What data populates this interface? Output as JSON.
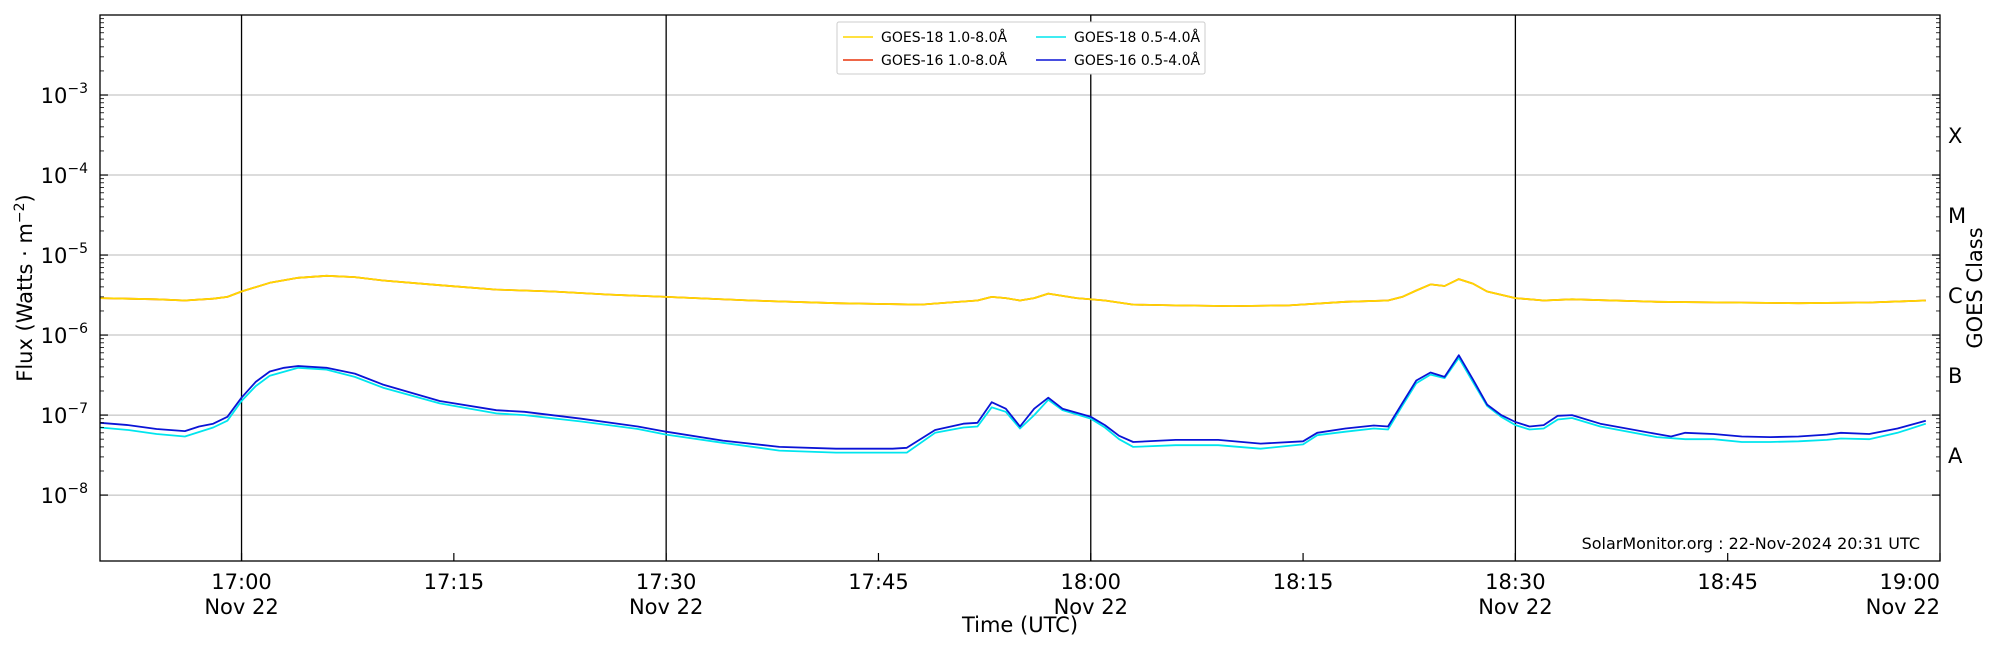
{
  "chart_data": {
    "type": "line",
    "xlabel": "Time (UTC)",
    "ylabel": "Flux (Watts · m",
    "ylabel_sup": "−2",
    "ylabel_close": ")",
    "ylabel_right": "GOES Class",
    "x_range": [
      "16:50",
      "19:00"
    ],
    "y_range": [
      1.5e-09,
      0.01
    ],
    "y_scale": "log",
    "grid": "horizontal at decades",
    "x_ticks": [
      {
        "t": "17:00",
        "label": "17:00",
        "date": "Nov 22"
      },
      {
        "t": "17:15",
        "label": "17:15",
        "date": ""
      },
      {
        "t": "17:30",
        "label": "17:30",
        "date": "Nov 22"
      },
      {
        "t": "17:45",
        "label": "17:45",
        "date": ""
      },
      {
        "t": "18:00",
        "label": "18:00",
        "date": "Nov 22"
      },
      {
        "t": "18:15",
        "label": "18:15",
        "date": ""
      },
      {
        "t": "18:30",
        "label": "18:30",
        "date": "Nov 22"
      },
      {
        "t": "18:45",
        "label": "18:45",
        "date": ""
      },
      {
        "t": "19:00",
        "label": "19:00",
        "date": "Nov 22"
      }
    ],
    "vertical_lines": [
      "17:00",
      "17:30",
      "18:00",
      "18:30"
    ],
    "y_ticks": [
      {
        "exp": -8,
        "label": "10",
        "sup": "−8"
      },
      {
        "exp": -7,
        "label": "10",
        "sup": "−7"
      },
      {
        "exp": -6,
        "label": "10",
        "sup": "−6"
      },
      {
        "exp": -5,
        "label": "10",
        "sup": "−5"
      },
      {
        "exp": -4,
        "label": "10",
        "sup": "−4"
      },
      {
        "exp": -3,
        "label": "10",
        "sup": "−3"
      }
    ],
    "goes_classes": [
      {
        "label": "A",
        "exp": -7.5
      },
      {
        "label": "B",
        "exp": -6.5
      },
      {
        "label": "C",
        "exp": -5.5
      },
      {
        "label": "M",
        "exp": -4.5
      },
      {
        "label": "X",
        "exp": -3.5
      }
    ],
    "legend_position": "top-center",
    "credit": "SolarMonitor.org : 22-Nov-2024 20:31 UTC",
    "series": [
      {
        "name": "GOES-18 1.0-8.0Å",
        "color": "#ffd700",
        "points": [
          [
            "16:50",
            2.9e-06
          ],
          [
            "16:54",
            2.8e-06
          ],
          [
            "16:56",
            2.7e-06
          ],
          [
            "16:58",
            2.85e-06
          ],
          [
            "16:59",
            3e-06
          ],
          [
            "17:00",
            3.5e-06
          ],
          [
            "17:02",
            4.5e-06
          ],
          [
            "17:04",
            5.2e-06
          ],
          [
            "17:06",
            5.5e-06
          ],
          [
            "17:08",
            5.3e-06
          ],
          [
            "17:10",
            4.8e-06
          ],
          [
            "17:14",
            4.2e-06
          ],
          [
            "17:18",
            3.7e-06
          ],
          [
            "17:22",
            3.5e-06
          ],
          [
            "17:26",
            3.2e-06
          ],
          [
            "17:30",
            3e-06
          ],
          [
            "17:36",
            2.7e-06
          ],
          [
            "17:42",
            2.5e-06
          ],
          [
            "17:48",
            2.4e-06
          ],
          [
            "17:50",
            2.55e-06
          ],
          [
            "17:52",
            2.7e-06
          ],
          [
            "17:53",
            3e-06
          ],
          [
            "17:54",
            2.9e-06
          ],
          [
            "17:55",
            2.7e-06
          ],
          [
            "17:56",
            2.9e-06
          ],
          [
            "17:57",
            3.3e-06
          ],
          [
            "17:59",
            2.9e-06
          ],
          [
            "18:01",
            2.7e-06
          ],
          [
            "18:03",
            2.4e-06
          ],
          [
            "18:06",
            2.35e-06
          ],
          [
            "18:10",
            2.3e-06
          ],
          [
            "18:14",
            2.35e-06
          ],
          [
            "18:18",
            2.6e-06
          ],
          [
            "18:21",
            2.7e-06
          ],
          [
            "18:22",
            3e-06
          ],
          [
            "18:23",
            3.6e-06
          ],
          [
            "18:24",
            4.3e-06
          ],
          [
            "18:25",
            4.1e-06
          ],
          [
            "18:26",
            5e-06
          ],
          [
            "18:27",
            4.4e-06
          ],
          [
            "18:28",
            3.5e-06
          ],
          [
            "18:30",
            2.9e-06
          ],
          [
            "18:32",
            2.7e-06
          ],
          [
            "18:34",
            2.8e-06
          ],
          [
            "18:40",
            2.6e-06
          ],
          [
            "18:45",
            2.55e-06
          ],
          [
            "18:50",
            2.5e-06
          ],
          [
            "18:55",
            2.55e-06
          ],
          [
            "18:59",
            2.7e-06
          ]
        ]
      },
      {
        "name": "GOES-16 1.0-8.0Å",
        "color": "#e8340c",
        "points": [
          [
            "16:50",
            2.9e-06
          ],
          [
            "16:54",
            2.8e-06
          ],
          [
            "16:56",
            2.7e-06
          ],
          [
            "16:58",
            2.85e-06
          ],
          [
            "16:59",
            3e-06
          ],
          [
            "17:00",
            3.5e-06
          ],
          [
            "17:02",
            4.5e-06
          ],
          [
            "17:04",
            5.2e-06
          ],
          [
            "17:06",
            5.5e-06
          ],
          [
            "17:08",
            5.3e-06
          ],
          [
            "17:10",
            4.8e-06
          ],
          [
            "17:14",
            4.2e-06
          ],
          [
            "17:18",
            3.7e-06
          ],
          [
            "17:22",
            3.5e-06
          ],
          [
            "17:26",
            3.2e-06
          ],
          [
            "17:30",
            3e-06
          ],
          [
            "17:36",
            2.7e-06
          ],
          [
            "17:42",
            2.5e-06
          ],
          [
            "17:48",
            2.4e-06
          ],
          [
            "17:50",
            2.55e-06
          ],
          [
            "17:52",
            2.7e-06
          ],
          [
            "17:53",
            3e-06
          ],
          [
            "17:54",
            2.9e-06
          ],
          [
            "17:55",
            2.7e-06
          ],
          [
            "17:56",
            2.9e-06
          ],
          [
            "17:57",
            3.3e-06
          ],
          [
            "17:59",
            2.9e-06
          ],
          [
            "18:01",
            2.7e-06
          ],
          [
            "18:03",
            2.4e-06
          ],
          [
            "18:06",
            2.35e-06
          ],
          [
            "18:10",
            2.3e-06
          ],
          [
            "18:14",
            2.35e-06
          ],
          [
            "18:18",
            2.6e-06
          ],
          [
            "18:21",
            2.7e-06
          ],
          [
            "18:22",
            3e-06
          ],
          [
            "18:23",
            3.6e-06
          ],
          [
            "18:24",
            4.3e-06
          ],
          [
            "18:25",
            4.1e-06
          ],
          [
            "18:26",
            5e-06
          ],
          [
            "18:27",
            4.4e-06
          ],
          [
            "18:28",
            3.5e-06
          ],
          [
            "18:30",
            2.9e-06
          ],
          [
            "18:32",
            2.7e-06
          ],
          [
            "18:34",
            2.8e-06
          ],
          [
            "18:40",
            2.6e-06
          ],
          [
            "18:45",
            2.55e-06
          ],
          [
            "18:50",
            2.5e-06
          ],
          [
            "18:55",
            2.55e-06
          ],
          [
            "18:59",
            2.7e-06
          ]
        ]
      },
      {
        "name": "GOES-18 0.5-4.0Å",
        "color": "#00e5ee",
        "points": [
          [
            "16:50",
            7e-08
          ],
          [
            "16:52",
            6.5e-08
          ],
          [
            "16:54",
            5.8e-08
          ],
          [
            "16:56",
            5.4e-08
          ],
          [
            "16:58",
            7e-08
          ],
          [
            "16:59",
            8.5e-08
          ],
          [
            "17:00",
            1.5e-07
          ],
          [
            "17:01",
            2.3e-07
          ],
          [
            "17:02",
            3.1e-07
          ],
          [
            "17:04",
            3.9e-07
          ],
          [
            "17:06",
            3.7e-07
          ],
          [
            "17:08",
            3e-07
          ],
          [
            "17:10",
            2.2e-07
          ],
          [
            "17:14",
            1.4e-07
          ],
          [
            "17:18",
            1.05e-07
          ],
          [
            "17:20",
            1e-07
          ],
          [
            "17:24",
            8.3e-08
          ],
          [
            "17:28",
            6.7e-08
          ],
          [
            "17:30",
            5.7e-08
          ],
          [
            "17:34",
            4.5e-08
          ],
          [
            "17:38",
            3.6e-08
          ],
          [
            "17:42",
            3.4e-08
          ],
          [
            "17:46",
            3.4e-08
          ],
          [
            "17:47",
            3.4e-08
          ],
          [
            "17:49",
            6e-08
          ],
          [
            "17:51",
            7e-08
          ],
          [
            "17:52",
            7.2e-08
          ],
          [
            "17:53",
            1.25e-07
          ],
          [
            "17:54",
            1.1e-07
          ],
          [
            "17:55",
            6.8e-08
          ],
          [
            "17:56",
            1e-07
          ],
          [
            "17:57",
            1.55e-07
          ],
          [
            "17:58",
            1.15e-07
          ],
          [
            "18:00",
            9e-08
          ],
          [
            "18:01",
            7e-08
          ],
          [
            "18:02",
            5e-08
          ],
          [
            "18:03",
            4e-08
          ],
          [
            "18:06",
            4.2e-08
          ],
          [
            "18:09",
            4.2e-08
          ],
          [
            "18:12",
            3.8e-08
          ],
          [
            "18:15",
            4.3e-08
          ],
          [
            "18:16",
            5.6e-08
          ],
          [
            "18:18",
            6.2e-08
          ],
          [
            "18:20",
            6.8e-08
          ],
          [
            "18:21",
            6.6e-08
          ],
          [
            "18:22",
            1.3e-07
          ],
          [
            "18:23",
            2.5e-07
          ],
          [
            "18:24",
            3.2e-07
          ],
          [
            "18:25",
            2.9e-07
          ],
          [
            "18:26",
            5.2e-07
          ],
          [
            "18:27",
            2.6e-07
          ],
          [
            "18:28",
            1.3e-07
          ],
          [
            "18:29",
            9.5e-08
          ],
          [
            "18:30",
            7.5e-08
          ],
          [
            "18:31",
            6.6e-08
          ],
          [
            "18:32",
            6.8e-08
          ],
          [
            "18:33",
            8.8e-08
          ],
          [
            "18:34",
            9.2e-08
          ],
          [
            "18:36",
            7.2e-08
          ],
          [
            "18:40",
            5.3e-08
          ],
          [
            "18:42",
            5e-08
          ],
          [
            "18:44",
            5e-08
          ],
          [
            "18:46",
            4.6e-08
          ],
          [
            "18:48",
            4.6e-08
          ],
          [
            "18:50",
            4.7e-08
          ],
          [
            "18:52",
            4.9e-08
          ],
          [
            "18:53",
            5.1e-08
          ],
          [
            "18:55",
            5e-08
          ],
          [
            "18:57",
            6e-08
          ],
          [
            "18:59",
            7.8e-08
          ]
        ]
      },
      {
        "name": "GOES-16 0.5-4.0Å",
        "color": "#0a14d6",
        "points": [
          [
            "16:50",
            8e-08
          ],
          [
            "16:52",
            7.5e-08
          ],
          [
            "16:54",
            6.7e-08
          ],
          [
            "16:56",
            6.3e-08
          ],
          [
            "16:57",
            7.2e-08
          ],
          [
            "16:58",
            7.8e-08
          ],
          [
            "16:59",
            9.5e-08
          ],
          [
            "17:00",
            1.65e-07
          ],
          [
            "17:01",
            2.6e-07
          ],
          [
            "17:02",
            3.5e-07
          ],
          [
            "17:03",
            3.9e-07
          ],
          [
            "17:04",
            4.1e-07
          ],
          [
            "17:06",
            3.9e-07
          ],
          [
            "17:08",
            3.3e-07
          ],
          [
            "17:10",
            2.4e-07
          ],
          [
            "17:14",
            1.5e-07
          ],
          [
            "17:18",
            1.15e-07
          ],
          [
            "17:20",
            1.1e-07
          ],
          [
            "17:24",
            9e-08
          ],
          [
            "17:28",
            7.2e-08
          ],
          [
            "17:30",
            6.2e-08
          ],
          [
            "17:34",
            4.8e-08
          ],
          [
            "17:38",
            4e-08
          ],
          [
            "17:42",
            3.8e-08
          ],
          [
            "17:46",
            3.8e-08
          ],
          [
            "17:47",
            3.9e-08
          ],
          [
            "17:49",
            6.5e-08
          ],
          [
            "17:51",
            7.8e-08
          ],
          [
            "17:52",
            8e-08
          ],
          [
            "17:53",
            1.45e-07
          ],
          [
            "17:54",
            1.2e-07
          ],
          [
            "17:55",
            7.2e-08
          ],
          [
            "17:56",
            1.2e-07
          ],
          [
            "17:57",
            1.65e-07
          ],
          [
            "17:58",
            1.2e-07
          ],
          [
            "18:00",
            9.5e-08
          ],
          [
            "18:01",
            7.5e-08
          ],
          [
            "18:02",
            5.5e-08
          ],
          [
            "18:03",
            4.6e-08
          ],
          [
            "18:06",
            4.9e-08
          ],
          [
            "18:09",
            4.9e-08
          ],
          [
            "18:12",
            4.4e-08
          ],
          [
            "18:15",
            4.7e-08
          ],
          [
            "18:16",
            6e-08
          ],
          [
            "18:18",
            6.8e-08
          ],
          [
            "18:20",
            7.4e-08
          ],
          [
            "18:21",
            7.2e-08
          ],
          [
            "18:22",
            1.4e-07
          ],
          [
            "18:23",
            2.7e-07
          ],
          [
            "18:24",
            3.4e-07
          ],
          [
            "18:25",
            3e-07
          ],
          [
            "18:26",
            5.6e-07
          ],
          [
            "18:27",
            2.8e-07
          ],
          [
            "18:28",
            1.35e-07
          ],
          [
            "18:29",
            1e-07
          ],
          [
            "18:30",
            8.2e-08
          ],
          [
            "18:31",
            7.2e-08
          ],
          [
            "18:32",
            7.5e-08
          ],
          [
            "18:33",
            9.8e-08
          ],
          [
            "18:34",
            1e-07
          ],
          [
            "18:36",
            7.8e-08
          ],
          [
            "18:40",
            5.8e-08
          ],
          [
            "18:41",
            5.4e-08
          ],
          [
            "18:42",
            6e-08
          ],
          [
            "18:44",
            5.8e-08
          ],
          [
            "18:46",
            5.4e-08
          ],
          [
            "18:48",
            5.3e-08
          ],
          [
            "18:50",
            5.4e-08
          ],
          [
            "18:52",
            5.7e-08
          ],
          [
            "18:53",
            6e-08
          ],
          [
            "18:55",
            5.8e-08
          ],
          [
            "18:57",
            6.8e-08
          ],
          [
            "18:59",
            8.5e-08
          ]
        ]
      }
    ]
  }
}
